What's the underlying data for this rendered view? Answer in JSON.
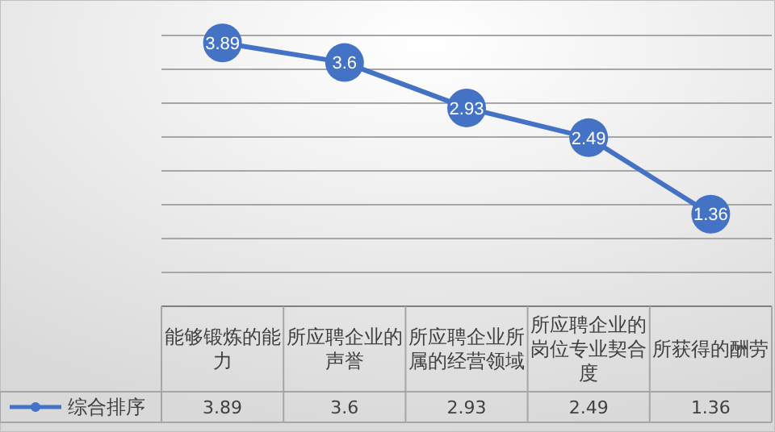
{
  "chart_data": {
    "type": "line",
    "categories": [
      "能够锻炼的能力",
      "所应聘企业的声誉",
      "所应聘企业所属的经营领域",
      "所应聘企业的岗位专业契合度",
      "所获得的酬劳"
    ],
    "series": [
      {
        "name": "综合排序",
        "color": "#4472c4",
        "values": [
          3.89,
          3.6,
          2.93,
          2.49,
          1.36
        ],
        "value_labels": [
          "3.89",
          "3.6",
          "2.93",
          "2.49",
          "1.36"
        ]
      }
    ],
    "ylim": [
      0,
      4.5
    ],
    "yticks": [
      {
        "value": 0,
        "label": null
      },
      {
        "value": 0.5,
        "label": null
      },
      {
        "value": 1,
        "label": null
      },
      {
        "value": 1.5,
        "label": null
      },
      {
        "value": 2,
        "label": null
      },
      {
        "value": 2.5,
        "label": null
      },
      {
        "value": 3,
        "label": null
      },
      {
        "value": 3.5,
        "label": null
      },
      {
        "value": 4,
        "label": null
      }
    ],
    "grid": true,
    "marker": "circle",
    "line_style": "solid",
    "data_labels": true,
    "legend": "bottom"
  }
}
